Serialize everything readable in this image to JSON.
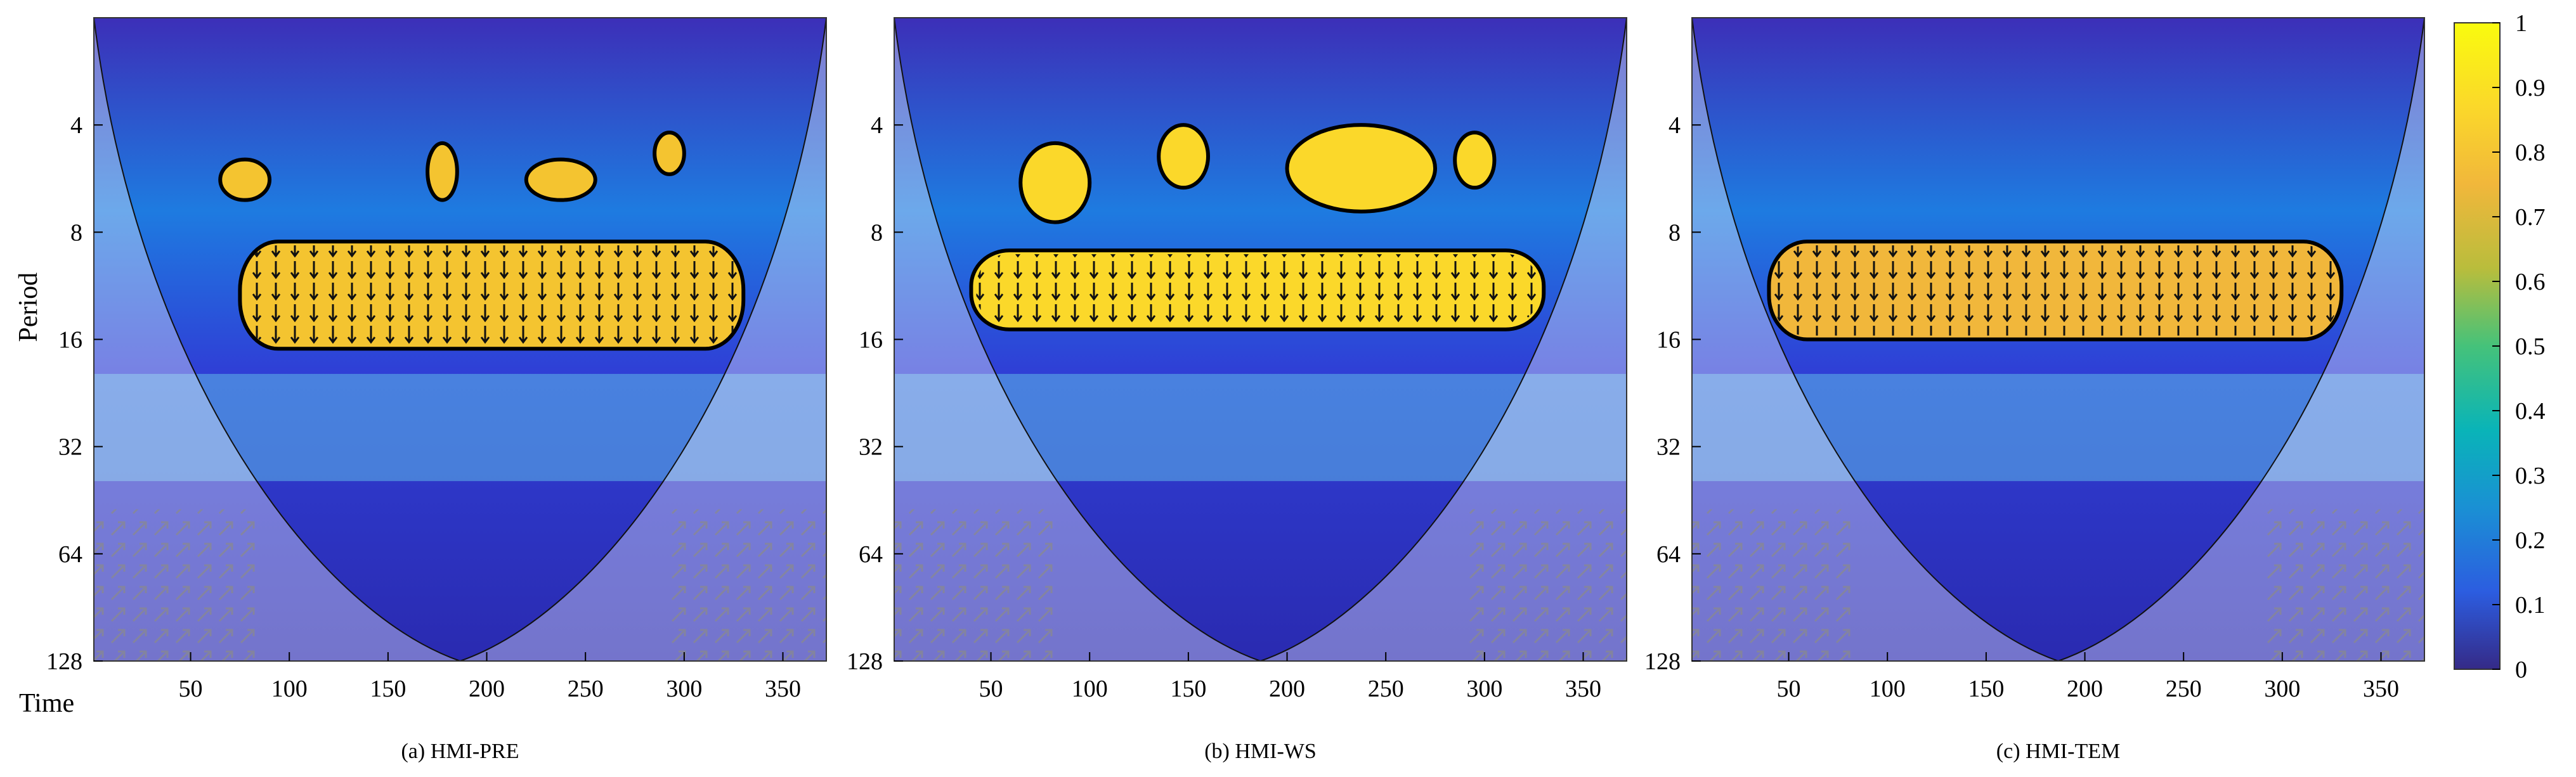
{
  "chart_data": [
    {
      "type": "heatmap",
      "title": "",
      "caption": "(a) HMI-PRE",
      "xlabel": "Time",
      "ylabel": "Period",
      "x_ticks": [
        50,
        100,
        150,
        200,
        250,
        300,
        350
      ],
      "xlim": [
        1,
        372
      ],
      "y_ticks": [
        4,
        8,
        16,
        32,
        64,
        128
      ],
      "ylim": [
        2,
        128
      ],
      "y_scale": "log2",
      "y_reversed": true,
      "significant_regions": [
        {
          "x": [
            75,
            330
          ],
          "period": [
            8.5,
            17
          ],
          "coherence": 0.95
        },
        {
          "x": [
            65,
            90
          ],
          "period": [
            5,
            6.5
          ],
          "coherence": 0.9
        },
        {
          "x": [
            170,
            185
          ],
          "period": [
            4.5,
            6.5
          ],
          "coherence": 0.9
        },
        {
          "x": [
            220,
            255
          ],
          "period": [
            5,
            6.5
          ],
          "coherence": 0.9
        },
        {
          "x": [
            285,
            300
          ],
          "period": [
            4.2,
            5.5
          ],
          "coherence": 0.9
        }
      ]
    },
    {
      "type": "heatmap",
      "title": "",
      "caption": "(b) HMI-WS",
      "xlabel": "",
      "ylabel": "",
      "x_ticks": [
        50,
        100,
        150,
        200,
        250,
        300,
        350
      ],
      "xlim": [
        1,
        372
      ],
      "y_ticks": [
        4,
        8,
        16,
        32,
        64,
        128
      ],
      "ylim": [
        2,
        128
      ],
      "y_scale": "log2",
      "y_reversed": true,
      "significant_regions": [
        {
          "x": [
            40,
            330
          ],
          "period": [
            9,
            15
          ],
          "coherence": 0.95
        },
        {
          "x": [
            65,
            100
          ],
          "period": [
            4.5,
            7.5
          ],
          "coherence": 0.9
        },
        {
          "x": [
            135,
            160
          ],
          "period": [
            4,
            6
          ],
          "coherence": 0.9
        },
        {
          "x": [
            200,
            275
          ],
          "period": [
            4,
            7
          ],
          "coherence": 0.9
        },
        {
          "x": [
            285,
            305
          ],
          "period": [
            4.2,
            6
          ],
          "coherence": 0.9
        }
      ]
    },
    {
      "type": "heatmap",
      "title": "",
      "caption": "(c) HMI-TEM",
      "xlabel": "",
      "ylabel": "",
      "x_ticks": [
        50,
        100,
        150,
        200,
        250,
        300,
        350
      ],
      "xlim": [
        1,
        372
      ],
      "y_ticks": [
        4,
        8,
        16,
        32,
        64,
        128
      ],
      "ylim": [
        2,
        128
      ],
      "y_scale": "log2",
      "y_reversed": true,
      "significant_regions": [
        {
          "x": [
            40,
            330
          ],
          "period": [
            8.5,
            16
          ],
          "coherence": 0.95
        }
      ]
    }
  ],
  "colorbar": {
    "ticks": [
      "1",
      "0.9",
      "0.8",
      "0.7",
      "0.6",
      "0.5",
      "0.4",
      "0.3",
      "0.2",
      "0.1",
      "0"
    ],
    "range": [
      0,
      1
    ],
    "colors": [
      "#352a87",
      "#2c5de0",
      "#1a90d4",
      "#09b4b8",
      "#45c27a",
      "#b9bd3c",
      "#f1b73b",
      "#fbd82a",
      "#f9fb0e"
    ]
  }
}
